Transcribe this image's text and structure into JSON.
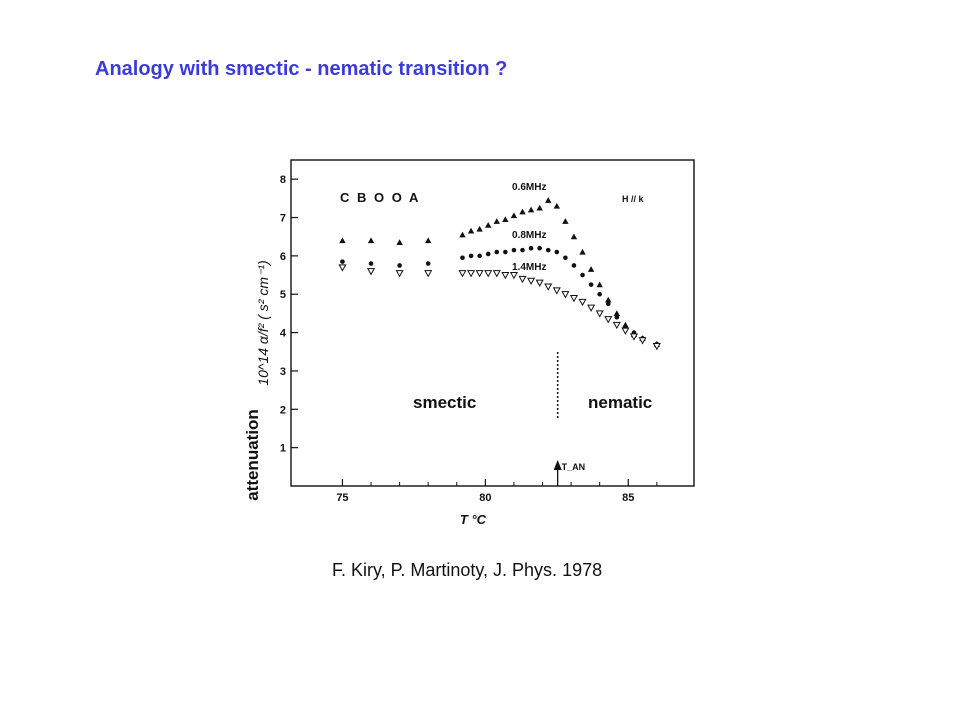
{
  "slide": {
    "title": "Analogy with smectic - nematic transition ?",
    "citation": "F. Kiry, P. Martinoty, J. Phys. 1978"
  },
  "chart_data": {
    "type": "scatter",
    "material_label": "C B O O A",
    "field_label": "H // k",
    "ylabel": "10^14 α/f² ( s² cm⁻¹)",
    "side_label": "attenuation",
    "xlabel": "T °C",
    "xlim": [
      73.2,
      87.3
    ],
    "ylim": [
      0,
      8.5
    ],
    "x_ticks": [
      75,
      80,
      85
    ],
    "y_ticks": [
      1,
      2,
      3,
      4,
      5,
      6,
      7,
      8
    ],
    "transition": {
      "label": "T_AN",
      "x": 82.6
    },
    "phase_labels": {
      "left": "smectic",
      "right": "nematic"
    },
    "series": [
      {
        "name": "0.6MHz",
        "marker": "triangle-up",
        "points": [
          [
            75,
            6.4
          ],
          [
            76,
            6.4
          ],
          [
            77,
            6.35
          ],
          [
            78,
            6.4
          ],
          [
            79.2,
            6.55
          ],
          [
            79.5,
            6.65
          ],
          [
            79.8,
            6.7
          ],
          [
            80.1,
            6.8
          ],
          [
            80.4,
            6.9
          ],
          [
            80.7,
            6.95
          ],
          [
            81.0,
            7.05
          ],
          [
            81.3,
            7.15
          ],
          [
            81.6,
            7.2
          ],
          [
            81.9,
            7.25
          ],
          [
            82.2,
            7.45
          ],
          [
            82.5,
            7.3
          ],
          [
            82.8,
            6.9
          ],
          [
            83.1,
            6.5
          ],
          [
            83.4,
            6.1
          ],
          [
            83.7,
            5.65
          ],
          [
            84.0,
            5.25
          ],
          [
            84.3,
            4.85
          ],
          [
            84.6,
            4.5
          ],
          [
            84.9,
            4.2
          ],
          [
            85.2,
            3.95
          ],
          [
            85.5,
            3.85
          ],
          [
            86.0,
            3.7
          ]
        ]
      },
      {
        "name": "0.8MHz",
        "marker": "circle",
        "points": [
          [
            75,
            5.85
          ],
          [
            76,
            5.8
          ],
          [
            77,
            5.75
          ],
          [
            78,
            5.8
          ],
          [
            79.2,
            5.95
          ],
          [
            79.5,
            6.0
          ],
          [
            79.8,
            6.0
          ],
          [
            80.1,
            6.05
          ],
          [
            80.4,
            6.1
          ],
          [
            80.7,
            6.1
          ],
          [
            81.0,
            6.15
          ],
          [
            81.3,
            6.15
          ],
          [
            81.6,
            6.2
          ],
          [
            81.9,
            6.2
          ],
          [
            82.2,
            6.15
          ],
          [
            82.5,
            6.1
          ],
          [
            82.8,
            5.95
          ],
          [
            83.1,
            5.75
          ],
          [
            83.4,
            5.5
          ],
          [
            83.7,
            5.25
          ],
          [
            84.0,
            5.0
          ],
          [
            84.3,
            4.75
          ],
          [
            84.6,
            4.4
          ],
          [
            84.9,
            4.15
          ],
          [
            85.2,
            4.0
          ],
          [
            85.5,
            3.85
          ],
          [
            86.0,
            3.7
          ]
        ]
      },
      {
        "name": "1.4MHz",
        "marker": "triangle-down",
        "points": [
          [
            75,
            5.7
          ],
          [
            76,
            5.6
          ],
          [
            77,
            5.55
          ],
          [
            78,
            5.55
          ],
          [
            79.2,
            5.55
          ],
          [
            79.5,
            5.55
          ],
          [
            79.8,
            5.55
          ],
          [
            80.1,
            5.55
          ],
          [
            80.4,
            5.55
          ],
          [
            80.7,
            5.5
          ],
          [
            81.0,
            5.5
          ],
          [
            81.3,
            5.4
          ],
          [
            81.6,
            5.35
          ],
          [
            81.9,
            5.3
          ],
          [
            82.2,
            5.2
          ],
          [
            82.5,
            5.1
          ],
          [
            82.8,
            5.0
          ],
          [
            83.1,
            4.9
          ],
          [
            83.4,
            4.8
          ],
          [
            83.7,
            4.65
          ],
          [
            84.0,
            4.5
          ],
          [
            84.3,
            4.35
          ],
          [
            84.6,
            4.2
          ],
          [
            84.9,
            4.05
          ],
          [
            85.2,
            3.9
          ],
          [
            85.5,
            3.8
          ],
          [
            86.0,
            3.65
          ]
        ]
      }
    ]
  }
}
